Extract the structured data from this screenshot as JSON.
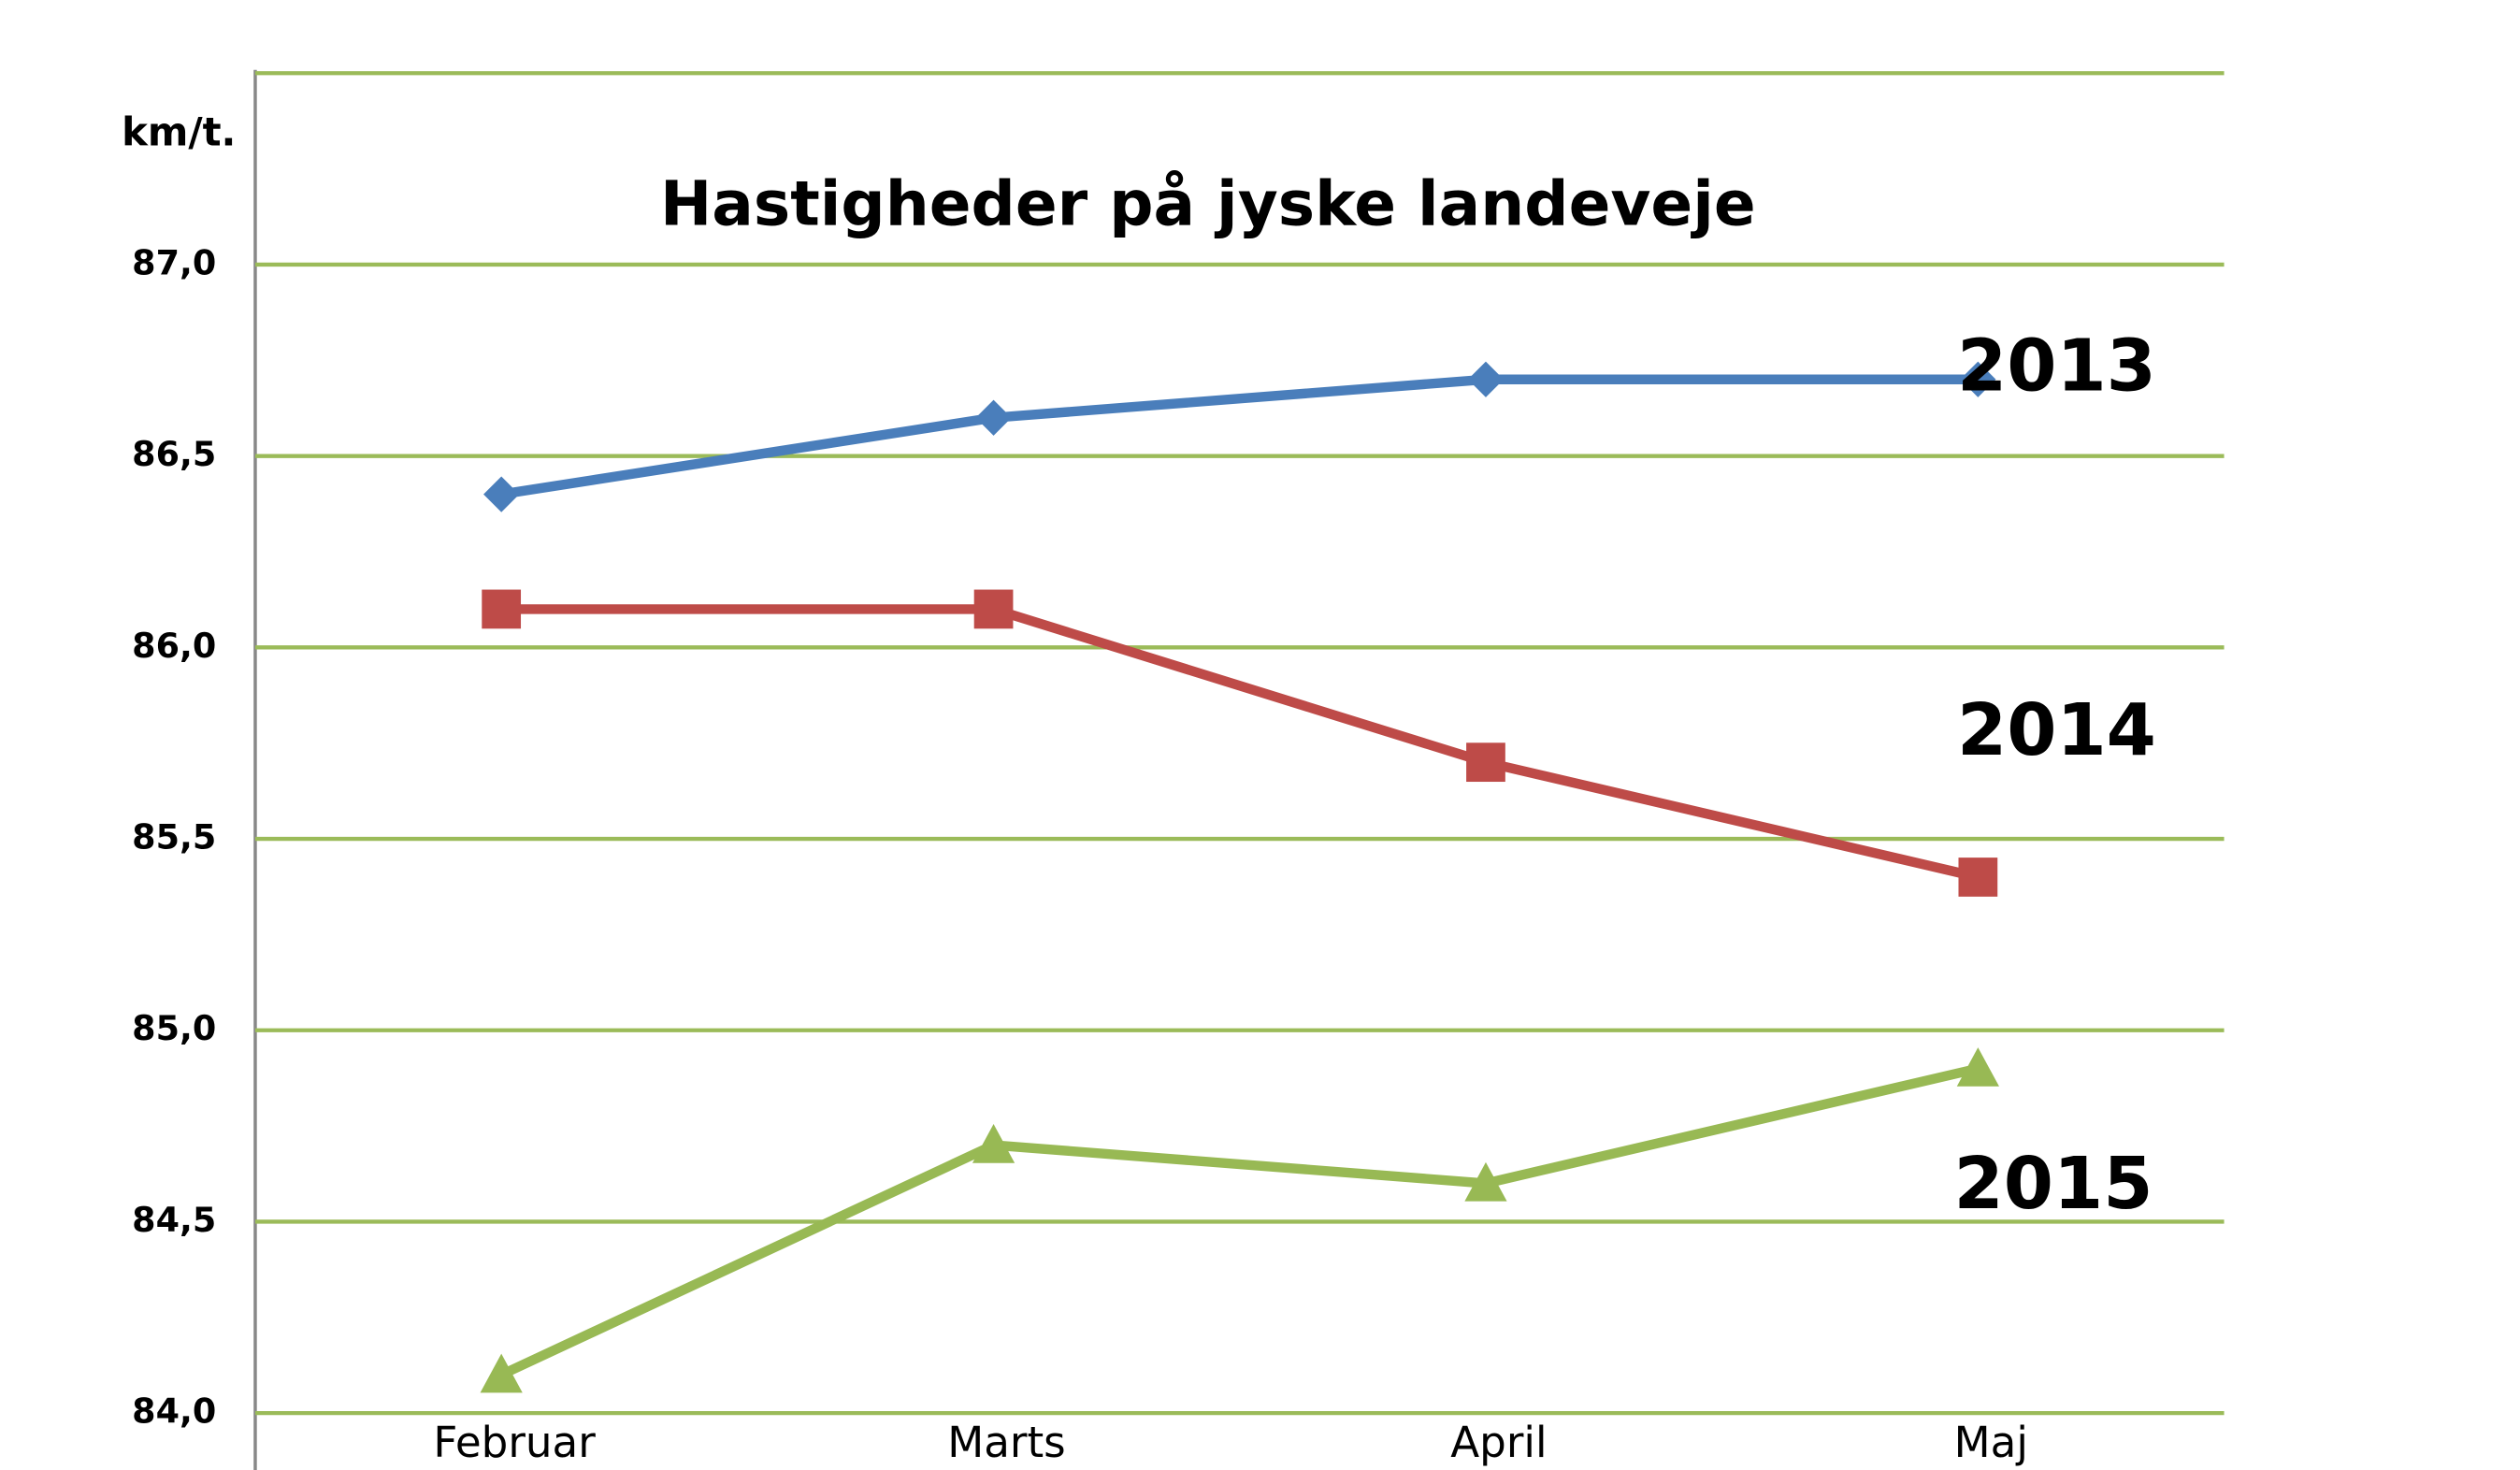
{
  "chart_data": {
    "type": "line",
    "title": "Hastigheder på jyske landeveje",
    "y_label": "km/t.",
    "categories": [
      "Februar",
      "Marts",
      "April",
      "Maj"
    ],
    "series": [
      {
        "name": "2013",
        "color": "#4a7ebb",
        "marker": "diamond",
        "values": [
          86.4,
          86.6,
          86.7,
          86.7
        ]
      },
      {
        "name": "2014",
        "color": "#be4b48",
        "marker": "square",
        "values": [
          86.1,
          86.1,
          85.7,
          85.4
        ]
      },
      {
        "name": "2015",
        "color": "#98b954",
        "marker": "triangle",
        "values": [
          84.1,
          84.7,
          84.6,
          84.9
        ]
      }
    ],
    "ylim": [
      84,
      87.5
    ],
    "yticks": [
      {
        "value": 84,
        "label": "84,0"
      },
      {
        "value": 84.5,
        "label": "84,5"
      },
      {
        "value": 85,
        "label": "85,0"
      },
      {
        "value": 85.5,
        "label": "85,5"
      },
      {
        "value": 86,
        "label": "86,0"
      },
      {
        "value": 86.5,
        "label": "86,5"
      },
      {
        "value": 87,
        "label": "87,0"
      }
    ],
    "grid": true,
    "grid_color": "#9bbb59"
  }
}
